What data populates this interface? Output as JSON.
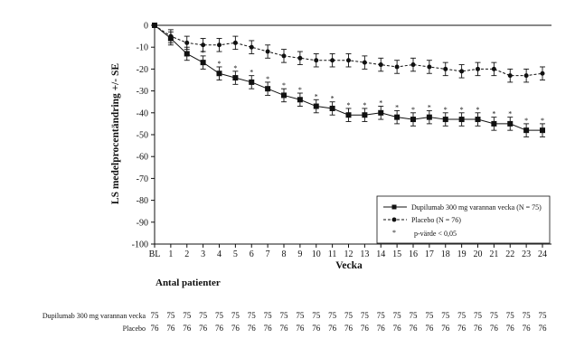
{
  "chart_data": {
    "type": "line",
    "title": "",
    "xlabel": "Vecka",
    "ylabel": "LS medelprocentändring +/- SE",
    "x": [
      0,
      1,
      2,
      3,
      4,
      5,
      6,
      7,
      8,
      9,
      10,
      11,
      12,
      13,
      14,
      15,
      16,
      17,
      18,
      19,
      20,
      21,
      22,
      23,
      24
    ],
    "x_tick_labels": [
      "BL",
      "1",
      "2",
      "3",
      "4",
      "5",
      "6",
      "7",
      "8",
      "9",
      "10",
      "11",
      "12",
      "13",
      "14",
      "15",
      "16",
      "17",
      "18",
      "19",
      "20",
      "21",
      "22",
      "23",
      "24"
    ],
    "ylim": [
      -100,
      0
    ],
    "y_ticks": [
      0,
      -10,
      -20,
      -30,
      -40,
      -50,
      -60,
      -70,
      -80,
      -90,
      -100
    ],
    "grid": false,
    "legend_position": "bottom-right",
    "series": [
      {
        "name": "Dupilumab 300 mg varannan vecka (N = 75)",
        "marker": "square",
        "line_style": "solid",
        "values": [
          0,
          -6,
          -13,
          -17,
          -22,
          -24,
          -26,
          -29,
          -32,
          -34,
          -37,
          -38,
          -41,
          -41,
          -40,
          -42,
          -43,
          -42,
          -43,
          -43,
          -43,
          -45,
          -45,
          -48,
          -48
        ],
        "se": [
          0,
          3,
          3,
          3,
          3,
          3,
          3,
          3,
          3,
          3,
          3,
          3,
          3,
          3,
          3,
          3,
          3,
          3,
          3,
          3,
          3,
          3,
          3,
          3,
          3
        ],
        "significant": [
          false,
          false,
          false,
          true,
          true,
          true,
          true,
          true,
          true,
          true,
          true,
          true,
          true,
          true,
          true,
          true,
          true,
          true,
          true,
          true,
          true,
          true,
          true,
          true,
          true
        ]
      },
      {
        "name": "Placebo (N = 76)",
        "marker": "circle",
        "line_style": "dashed",
        "values": [
          0,
          -5,
          -8,
          -9,
          -9,
          -8,
          -10,
          -12,
          -14,
          -15,
          -16,
          -16,
          -16,
          -17,
          -18,
          -19,
          -18,
          -19,
          -20,
          -21,
          -20,
          -20,
          -23,
          -23,
          -22
        ],
        "se": [
          0,
          3,
          3,
          3,
          3,
          3,
          3,
          3,
          3,
          3,
          3,
          3,
          3,
          3,
          3,
          3,
          3,
          3,
          3,
          3,
          3,
          3,
          3,
          3,
          3
        ]
      }
    ],
    "legend_extra": "p-värde < 0,05",
    "legend_extra_marker": "*"
  },
  "patients_table": {
    "title": "Antal patienter",
    "rows": [
      {
        "label": "Dupilumab 300 mg varannan vecka",
        "values": [
          "75",
          "75",
          "75",
          "75",
          "75",
          "75",
          "75",
          "75",
          "75",
          "75",
          "75",
          "75",
          "75",
          "75",
          "75",
          "75",
          "75",
          "75",
          "75",
          "75",
          "75",
          "75",
          "75",
          "75",
          "75"
        ]
      },
      {
        "label": "Placebo",
        "values": [
          "76",
          "76",
          "76",
          "76",
          "76",
          "76",
          "76",
          "76",
          "76",
          "76",
          "76",
          "76",
          "76",
          "76",
          "76",
          "76",
          "76",
          "76",
          "76",
          "76",
          "76",
          "76",
          "76",
          "76",
          "76"
        ]
      }
    ]
  }
}
